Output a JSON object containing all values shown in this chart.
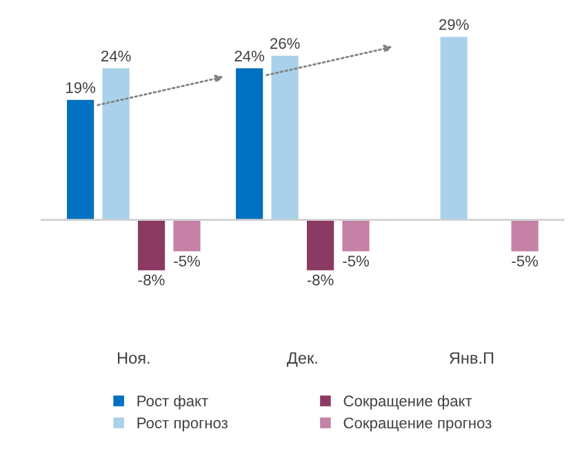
{
  "chart_data": {
    "type": "bar",
    "categories": [
      "Ноя.",
      "Дек.",
      "Янв.П"
    ],
    "series": [
      {
        "name": "Рост факт",
        "color": "#0070c0",
        "values": [
          19,
          24,
          null
        ],
        "value_labels": [
          "19%",
          "24%",
          null
        ]
      },
      {
        "name": "Рост прогноз",
        "color": "#a9d1ea",
        "values": [
          24,
          26,
          29
        ],
        "value_labels": [
          "24%",
          "26%",
          "29%"
        ]
      },
      {
        "name": "Сокращение факт",
        "color": "#8b3a62",
        "values": [
          -8,
          -8,
          null
        ],
        "value_labels": [
          "-8%",
          "-8%",
          null
        ]
      },
      {
        "name": "Сокращение прогноз",
        "color": "#c682a6",
        "values": [
          -5,
          -5,
          -5
        ],
        "value_labels": [
          "-5%",
          "-5%",
          "-5%"
        ]
      }
    ],
    "legend": "bottom",
    "grid": false
  }
}
